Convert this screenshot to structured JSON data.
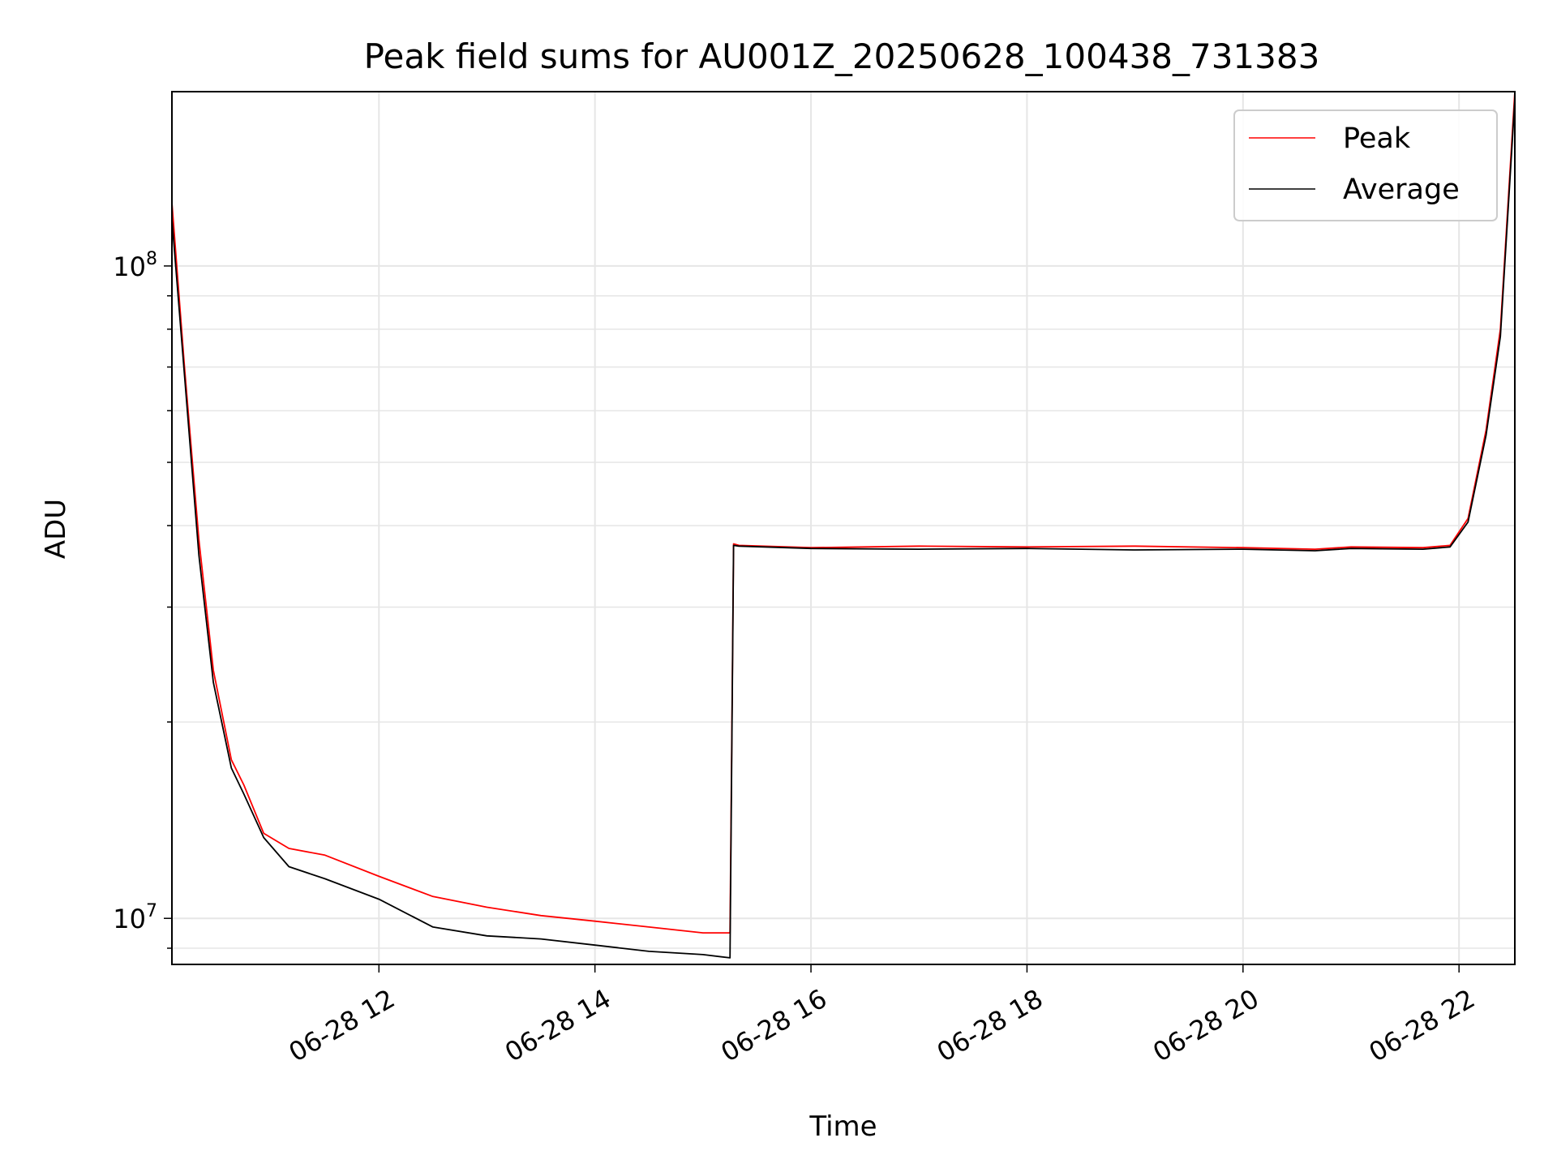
{
  "chart_data": {
    "type": "line",
    "title": "Peak field sums for AU001Z_20250628_100438_731383",
    "xlabel": "Time",
    "ylabel": "ADU",
    "x_axis": "datetime",
    "y_scale": "log",
    "grid": true,
    "legend_position": "top-right",
    "xlim": [
      "06-28 10:05",
      "06-28 22:31"
    ],
    "ylim": [
      8500000,
      185000000
    ],
    "x_ticks": [
      "06-28 12",
      "06-28 14",
      "06-28 16",
      "06-28 18",
      "06-28 20",
      "06-28 22"
    ],
    "x_tick_times": [
      "06-28 12:00",
      "06-28 14:00",
      "06-28 16:00",
      "06-28 18:00",
      "06-28 20:00",
      "06-28 22:00"
    ],
    "y_ticks": [
      {
        "base": "10",
        "exp": "7",
        "value": 10000000
      },
      {
        "base": "10",
        "exp": "8",
        "value": 100000000
      }
    ],
    "series": [
      {
        "name": "Peak",
        "color": "#ff0000",
        "x": [
          "06-28 10:05",
          "06-28 10:12",
          "06-28 10:20",
          "06-28 10:28",
          "06-28 10:38",
          "06-28 10:45",
          "06-28 10:56",
          "06-28 11:10",
          "06-28 11:30",
          "06-28 12:00",
          "06-28 12:30",
          "06-28 13:00",
          "06-28 13:30",
          "06-28 14:00",
          "06-28 14:30",
          "06-28 15:00",
          "06-28 15:15",
          "06-28 15:17",
          "06-28 15:20",
          "06-28 16:00",
          "06-28 17:00",
          "06-28 18:00",
          "06-28 19:00",
          "06-28 20:00",
          "06-28 20:40",
          "06-28 21:00",
          "06-28 21:40",
          "06-28 21:55",
          "06-28 22:05",
          "06-28 22:15",
          "06-28 22:23",
          "06-28 22:31"
        ],
        "y": [
          125000000,
          70000000,
          38000000,
          24000000,
          17500000,
          16000000,
          13500000,
          12800000,
          12500000,
          11600000,
          10800000,
          10400000,
          10100000,
          9900000,
          9700000,
          9500000,
          9500000,
          37500000,
          37300000,
          37000000,
          37200000,
          37100000,
          37200000,
          37000000,
          36800000,
          37100000,
          37000000,
          37300000,
          41000000,
          56000000,
          80000000,
          185000000
        ]
      },
      {
        "name": "Average",
        "color": "#000000",
        "x": [
          "06-28 10:05",
          "06-28 10:12",
          "06-28 10:20",
          "06-28 10:28",
          "06-28 10:38",
          "06-28 10:45",
          "06-28 10:56",
          "06-28 11:10",
          "06-28 11:30",
          "06-28 12:00",
          "06-28 12:30",
          "06-28 13:00",
          "06-28 13:30",
          "06-28 14:00",
          "06-28 14:30",
          "06-28 15:00",
          "06-28 15:15",
          "06-28 15:17",
          "06-28 15:20",
          "06-28 16:00",
          "06-28 17:00",
          "06-28 18:00",
          "06-28 19:00",
          "06-28 20:00",
          "06-28 20:40",
          "06-28 21:00",
          "06-28 21:40",
          "06-28 21:55",
          "06-28 22:05",
          "06-28 22:15",
          "06-28 22:23",
          "06-28 22:31"
        ],
        "y": [
          118000000,
          68000000,
          36000000,
          23000000,
          17000000,
          15500000,
          13300000,
          12000000,
          11500000,
          10700000,
          9700000,
          9400000,
          9300000,
          9100000,
          8900000,
          8800000,
          8700000,
          37300000,
          37200000,
          36900000,
          36800000,
          36900000,
          36700000,
          36800000,
          36600000,
          36900000,
          36800000,
          37100000,
          40500000,
          55000000,
          78000000,
          180000000
        ]
      }
    ]
  }
}
